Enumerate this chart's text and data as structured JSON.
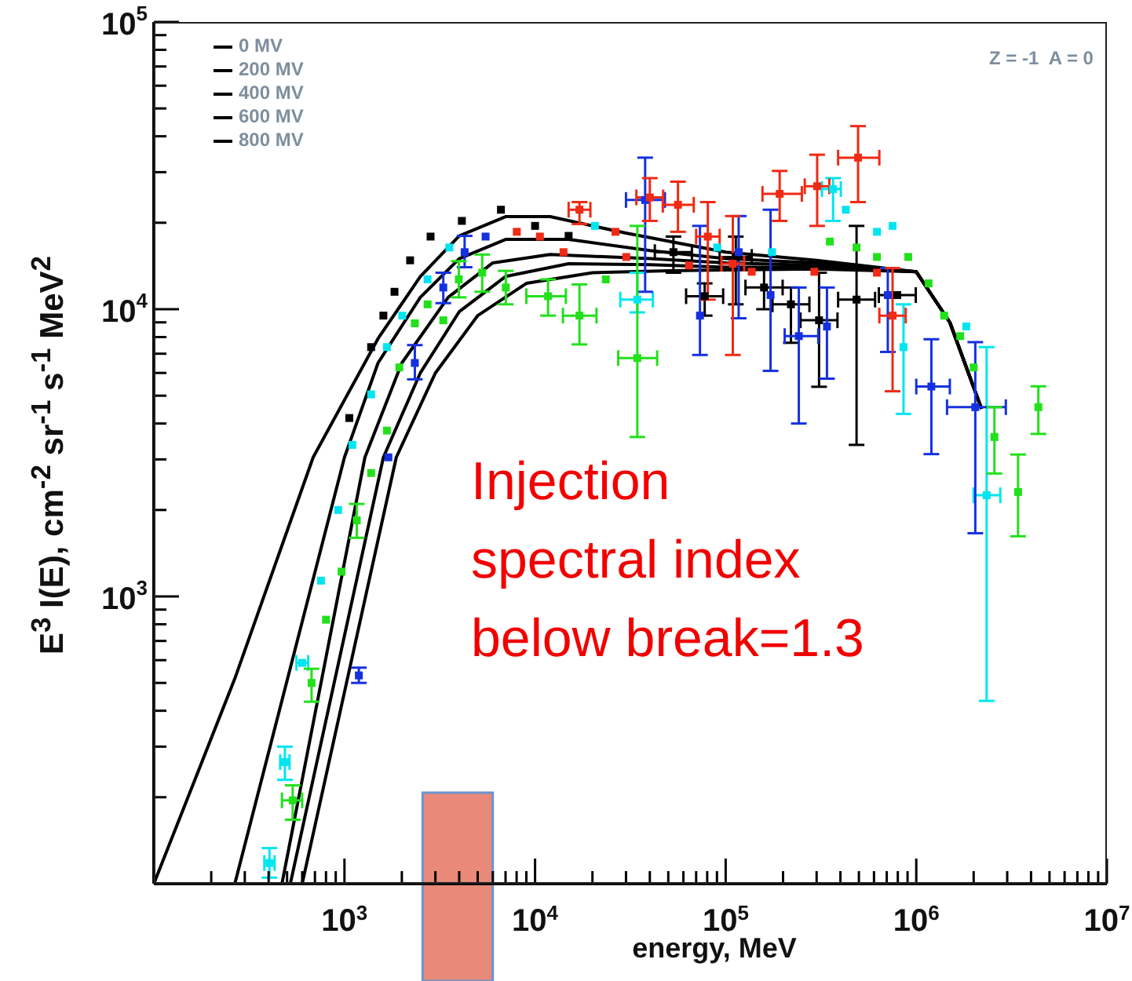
{
  "chart_data": {
    "type": "scatter",
    "xlabel": "energy, MeV",
    "ylabel": "E$^{3}$ I(E), cm$^{-2}$ sr$^{-1}$ s$^{-1}$ MeV$^{2}$",
    "log": "xy",
    "legend": "top left",
    "xlim": [
      100,
      10000000
    ],
    "ylim": [
      100,
      100000
    ],
    "xticks": [
      {
        "value": 200,
        "label": null
      },
      {
        "value": 300,
        "label": null
      },
      {
        "value": 400,
        "label": null
      },
      {
        "value": 500,
        "label": null
      },
      {
        "value": 600,
        "label": null
      },
      {
        "value": 700,
        "label": null
      },
      {
        "value": 800,
        "label": null
      },
      {
        "value": 900,
        "label": null
      },
      {
        "value": 1000,
        "label": "10$^{3}$"
      },
      {
        "value": 2000,
        "label": null
      },
      {
        "value": 3000,
        "label": null
      },
      {
        "value": 4000,
        "label": null
      },
      {
        "value": 5000,
        "label": null
      },
      {
        "value": 6000,
        "label": null
      },
      {
        "value": 7000,
        "label": null
      },
      {
        "value": 8000,
        "label": null
      },
      {
        "value": 9000,
        "label": null
      },
      {
        "value": 10000,
        "label": "10$^{4}$"
      },
      {
        "value": 20000,
        "label": null
      },
      {
        "value": 30000,
        "label": null
      },
      {
        "value": 40000,
        "label": null
      },
      {
        "value": 50000,
        "label": null
      },
      {
        "value": 60000,
        "label": null
      },
      {
        "value": 70000,
        "label": null
      },
      {
        "value": 80000,
        "label": null
      },
      {
        "value": 90000,
        "label": null
      },
      {
        "value": 100000,
        "label": "10$^{5}$"
      },
      {
        "value": 200000,
        "label": null
      },
      {
        "value": 300000,
        "label": null
      },
      {
        "value": 400000,
        "label": null
      },
      {
        "value": 500000,
        "label": null
      },
      {
        "value": 600000,
        "label": null
      },
      {
        "value": 700000,
        "label": null
      },
      {
        "value": 800000,
        "label": null
      },
      {
        "value": 900000,
        "label": null
      },
      {
        "value": 1000000,
        "label": "10$^{6}$"
      },
      {
        "value": 2000000,
        "label": null
      },
      {
        "value": 3000000,
        "label": null
      },
      {
        "value": 4000000,
        "label": null
      },
      {
        "value": 5000000,
        "label": null
      },
      {
        "value": 6000000,
        "label": null
      },
      {
        "value": 7000000,
        "label": null
      },
      {
        "value": 8000000,
        "label": null
      },
      {
        "value": 9000000,
        "label": null
      },
      {
        "value": 10000000,
        "label": "10$^{7}$"
      }
    ],
    "yticks": [
      {
        "value": 200,
        "label": null
      },
      {
        "value": 300,
        "label": null
      },
      {
        "value": 400,
        "label": null
      },
      {
        "value": 500,
        "label": null
      },
      {
        "value": 600,
        "label": null
      },
      {
        "value": 700,
        "label": null
      },
      {
        "value": 800,
        "label": null
      },
      {
        "value": 900,
        "label": null
      },
      {
        "value": 1000,
        "label": "10$^{3}$"
      },
      {
        "value": 2000,
        "label": null
      },
      {
        "value": 3000,
        "label": null
      },
      {
        "value": 4000,
        "label": null
      },
      {
        "value": 5000,
        "label": null
      },
      {
        "value": 6000,
        "label": null
      },
      {
        "value": 7000,
        "label": null
      },
      {
        "value": 8000,
        "label": null
      },
      {
        "value": 9000,
        "label": null
      },
      {
        "value": 10000,
        "label": "10$^{4}$"
      },
      {
        "value": 20000,
        "label": null
      },
      {
        "value": 30000,
        "label": null
      },
      {
        "value": 40000,
        "label": null
      },
      {
        "value": 50000,
        "label": null
      },
      {
        "value": 60000,
        "label": null
      },
      {
        "value": 70000,
        "label": null
      },
      {
        "value": 80000,
        "label": null
      },
      {
        "value": 90000,
        "label": null
      },
      {
        "value": 100000,
        "label": "10$^{5}$"
      }
    ],
    "annotations": [
      "Z = -1  A = 0",
      "Injection\nspectral index\nbelow break=1.3"
    ],
    "bands": [
      {
        "axis": "x",
        "from": 2570,
        "to": 6000,
        "color": "#e8897a"
      }
    ],
    "series": [
      {
        "name": "0 MV",
        "type": "line",
        "marker": "none",
        "color": "#000000",
        "x": [
          100,
          266,
          685,
          1500,
          2500,
          4000,
          7000,
          12000,
          30000,
          100000,
          300000,
          1000000,
          1500000,
          2200000
        ],
        "values": [
          100,
          518,
          3050,
          7900,
          13000,
          18000,
          21000,
          21000,
          18400,
          15800,
          14800,
          13500,
          9000,
          4500
        ]
      },
      {
        "name": "200 MV",
        "type": "line",
        "marker": "none",
        "color": "#000000",
        "x": [
          266,
          1000,
          1500,
          2500,
          4000,
          7000,
          15000,
          40000,
          100000,
          300000,
          1000000,
          1500000,
          2200000
        ],
        "values": [
          100,
          3050,
          6500,
          11000,
          15000,
          17500,
          17500,
          16000,
          15000,
          14500,
          13500,
          9000,
          4500
        ]
      },
      {
        "name": "400 MV",
        "type": "line",
        "marker": "none",
        "color": "#000000",
        "x": [
          470,
          1280,
          2000,
          3500,
          6000,
          12000,
          40000,
          100000,
          300000,
          1000000,
          1500000,
          2200000
        ],
        "values": [
          100,
          3050,
          6500,
          11000,
          14500,
          15500,
          15000,
          14500,
          14200,
          13500,
          9000,
          4500
        ]
      },
      {
        "name": "600 MV",
        "type": "line",
        "marker": "none",
        "color": "#000000",
        "x": [
          520,
          1600,
          2500,
          4000,
          7000,
          15000,
          40000,
          100000,
          300000,
          1000000,
          1500000,
          2200000
        ],
        "values": [
          100,
          3050,
          6000,
          9800,
          13000,
          14400,
          14300,
          14000,
          14000,
          13500,
          9000,
          4500
        ]
      },
      {
        "name": "800 MV",
        "type": "line",
        "marker": "none",
        "color": "#000000",
        "x": [
          600,
          1870,
          3000,
          5000,
          9000,
          20000,
          50000,
          100000,
          300000,
          1000000,
          1500000,
          2200000
        ],
        "values": [
          100,
          3050,
          6000,
          9500,
          12300,
          13400,
          13600,
          13700,
          13800,
          13500,
          9000,
          4500
        ]
      },
      {
        "marker": "square",
        "color": "#000000",
        "x": [
          1060,
          1380,
          1600,
          1830,
          2210,
          2830,
          4130,
          6620,
          10000,
          15000,
          53200,
          77600,
          113000,
          159000,
          220000,
          309000,
          486000,
          795000
        ],
        "values": [
          4180,
          7380,
          9500,
          11500,
          14800,
          17900,
          20300,
          22200,
          19500,
          18000,
          15800,
          11100,
          15200,
          11900,
          10400,
          9150,
          10800,
          11200
        ],
        "errors": [
          null,
          null,
          null,
          null,
          null,
          null,
          null,
          null,
          null,
          null,
          [
            13400,
            17900
          ],
          [
            9500,
            12300
          ],
          [
            10400,
            17900
          ],
          [
            10000,
            14000
          ],
          [
            7640,
            11900
          ],
          [
            5370,
            13400
          ],
          [
            3370,
            19500
          ],
          null
        ],
        "xerrors": [
          null,
          null,
          null,
          null,
          null,
          null,
          null,
          null,
          null,
          null,
          [
            42500,
            66500
          ],
          [
            62000,
            97000
          ],
          [
            93000,
            137000
          ],
          [
            127000,
            199000
          ],
          [
            176000,
            275000
          ],
          [
            247000,
            386000
          ],
          [
            389000,
            608000
          ],
          [
            636000,
            994000
          ]
        ]
      },
      {
        "marker": "square",
        "color": "#00e5f0",
        "x": [
          404,
          487,
          600,
          753,
          927,
          1100,
          1380,
          1670,
          2010,
          2730,
          3550,
          20600,
          34400,
          90300,
          175000,
          366000,
          427000,
          622000,
          751000,
          857000,
          1830000,
          2340000
        ],
        "values": [
          118,
          265,
          587,
          1135,
          2000,
          3370,
          5050,
          7380,
          9500,
          12700,
          16400,
          19500,
          10800,
          16400,
          15800,
          26200,
          22200,
          18600,
          19500,
          7380,
          8710,
          2250
        ],
        "errors": [
          [
            105,
            133
          ],
          [
            230,
            300
          ],
          null,
          null,
          null,
          null,
          null,
          null,
          null,
          null,
          null,
          null,
          [
            9750,
            13400
          ],
          null,
          null,
          [
            20300,
            28600
          ],
          null,
          null,
          null,
          [
            4320,
            10400
          ],
          null,
          [
            433,
            7380
          ]
        ],
        "xerrors": [
          [
            380,
            430
          ],
          [
            460,
            515
          ],
          [
            560,
            645
          ],
          null,
          null,
          null,
          null,
          null,
          null,
          null,
          null,
          null,
          [
            28000,
            41500
          ],
          null,
          null,
          [
            320000,
            402000
          ],
          null,
          null,
          null,
          null,
          null,
          [
            2000000,
            2760000
          ]
        ]
      },
      {
        "marker": "square",
        "color": "#1530e0",
        "x": [
          1190,
          1700,
          2340,
          3300,
          4270,
          5500,
          37800,
          73300,
          117000,
          172000,
          242000,
          340000,
          709000,
          1200000,
          2040000
        ],
        "values": [
          531,
          3050,
          6500,
          11900,
          15800,
          17900,
          24000,
          9500,
          15800,
          11200,
          8060,
          8710,
          11200,
          5380,
          4560
        ],
        "errors": [
          [
            500,
            565
          ],
          null,
          [
            5700,
            7500
          ],
          [
            10500,
            13400
          ],
          [
            14000,
            18000
          ],
          null,
          [
            11500,
            33700
          ],
          [
            6930,
            19500
          ],
          [
            9300,
            21100
          ],
          [
            6100,
            22200
          ],
          [
            4000,
            11900
          ],
          [
            5730,
            11900
          ],
          [
            7100,
            13900
          ],
          [
            3130,
            7860
          ],
          [
            1660,
            7680
          ]
        ],
        "xerrors": [
          null,
          null,
          null,
          null,
          null,
          null,
          [
            30000,
            48000
          ],
          null,
          null,
          null,
          [
            204000,
            306000
          ],
          null,
          null,
          [
            1000000,
            1500000
          ],
          [
            1450000,
            2950000
          ]
        ]
      },
      {
        "marker": "square",
        "color": "#22e01c",
        "x": [
          535,
          672,
          800,
          965,
          1160,
          1380,
          1670,
          1940,
          2340,
          2730,
          3300,
          3980,
          5280,
          7020,
          11700,
          17100,
          23500,
          34400,
          352000,
          486000,
          622000,
          908000,
          1160000,
          1400000,
          1700000,
          2000000,
          2570000,
          3420000,
          4370000
        ],
        "values": [
          195,
          500,
          830,
          1220,
          1840,
          2690,
          3780,
          6270,
          8930,
          10400,
          9150,
          12700,
          13400,
          11900,
          11100,
          9500,
          12700,
          6760,
          17200,
          16400,
          15200,
          15200,
          12300,
          9500,
          8060,
          6270,
          3590,
          2310,
          4560
        ],
        "errors": [
          [
            167,
            220
          ],
          [
            430,
            560
          ],
          null,
          null,
          [
            1600,
            2100
          ],
          null,
          null,
          null,
          null,
          null,
          null,
          [
            11000,
            14700
          ],
          [
            11500,
            15500
          ],
          [
            10400,
            13600
          ],
          [
            9500,
            12700
          ],
          [
            7540,
            12200
          ],
          null,
          [
            3590,
            19500
          ],
          null,
          null,
          null,
          null,
          null,
          null,
          null,
          null,
          [
            2680,
            4560
          ],
          [
            1620,
            3120
          ],
          [
            3680,
            5390
          ]
        ],
        "xerrors": [
          [
            470,
            600
          ],
          null,
          null,
          null,
          null,
          null,
          null,
          null,
          null,
          null,
          null,
          null,
          null,
          null,
          [
            9000,
            14500
          ],
          [
            14000,
            21000
          ],
          null,
          [
            27300,
            43700
          ],
          null,
          null,
          null,
          null,
          null,
          null,
          null,
          null,
          null,
          null,
          null
        ]
      },
      {
        "marker": "square",
        "color": "#f02a14",
        "x": [
          8020,
          10600,
          14100,
          17100,
          26400,
          30100,
          40000,
          56200,
          64300,
          80600,
          109000,
          137000,
          192000,
          292000,
          302000,
          495000,
          622000,
          751000
        ],
        "values": [
          18600,
          17900,
          15800,
          22200,
          18600,
          15200,
          24500,
          23100,
          14200,
          17900,
          14400,
          13500,
          25200,
          13500,
          26800,
          33700,
          13400,
          9500
        ],
        "errors": [
          null,
          null,
          null,
          [
            19800,
            23600
          ],
          null,
          null,
          [
            20300,
            28600
          ],
          [
            18600,
            27800
          ],
          null,
          [
            10800,
            23600
          ],
          [
            6930,
            21100
          ],
          null,
          [
            20300,
            30300
          ],
          null,
          [
            19500,
            34500
          ],
          [
            23600,
            43400
          ],
          null,
          [
            5180,
            13900
          ]
        ],
        "xerrors": [
          null,
          null,
          null,
          [
            15000,
            19500
          ],
          null,
          null,
          [
            34000,
            47000
          ],
          [
            46800,
            68000
          ],
          null,
          [
            70000,
            93000
          ],
          [
            95000,
            125000
          ],
          null,
          [
            156000,
            251000
          ],
          null,
          [
            260000,
            350000
          ],
          [
            389000,
            640000
          ],
          null,
          [
            640000,
            880000
          ]
        ]
      }
    ]
  }
}
